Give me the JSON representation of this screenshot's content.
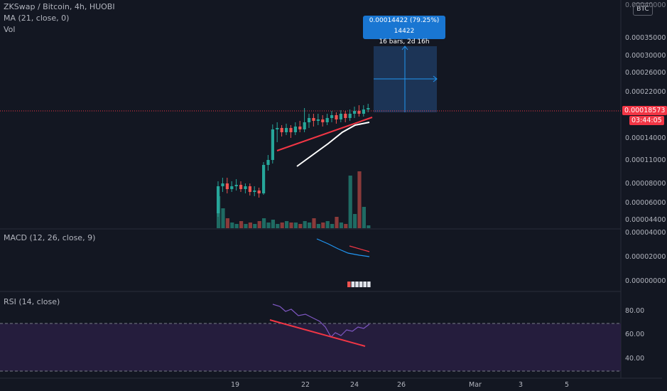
{
  "header": {
    "symbol_line": "ZKSwap / Bitcoin, 4h, HUOBI",
    "ma_label": "MA (21, close, 0)",
    "vol_label": "Vol"
  },
  "currency_badge": "BTC",
  "price_axis": {
    "top_partial": "0.00040000",
    "ticks": [
      "0.00035000",
      "0.00030000",
      "0.00026000",
      "0.00022000",
      "0.00014000",
      "0.00011000",
      "0.00008000",
      "0.00006000",
      "0.00004400"
    ],
    "current_price": "0.00018573",
    "countdown": "03:44:05"
  },
  "measure_tooltip": {
    "line1": "0.00014422 (79.25%) 14422",
    "line2": "16 bars, 2d 16h"
  },
  "macd": {
    "label": "MACD (12, 26, close, 9)",
    "ticks": [
      "0.00004000",
      "0.00002000",
      "0.00000000"
    ]
  },
  "rsi": {
    "label": "RSI (14, close)",
    "ticks": [
      "80.00",
      "60.00",
      "40.00"
    ]
  },
  "time_axis": [
    "19",
    "22",
    "24",
    "26",
    "Mar",
    "3",
    "5"
  ],
  "colors": {
    "background": "#131722",
    "up": "#26a69a",
    "down": "#ef5350",
    "trendline": "#f23645",
    "ma": "#ffffff",
    "macd_line": "#2196f3",
    "signal_line": "#f23645",
    "rsi_line": "#7e57c2",
    "rsi_band": "#2a1f45",
    "measure_box": "#1e3a5f"
  }
}
